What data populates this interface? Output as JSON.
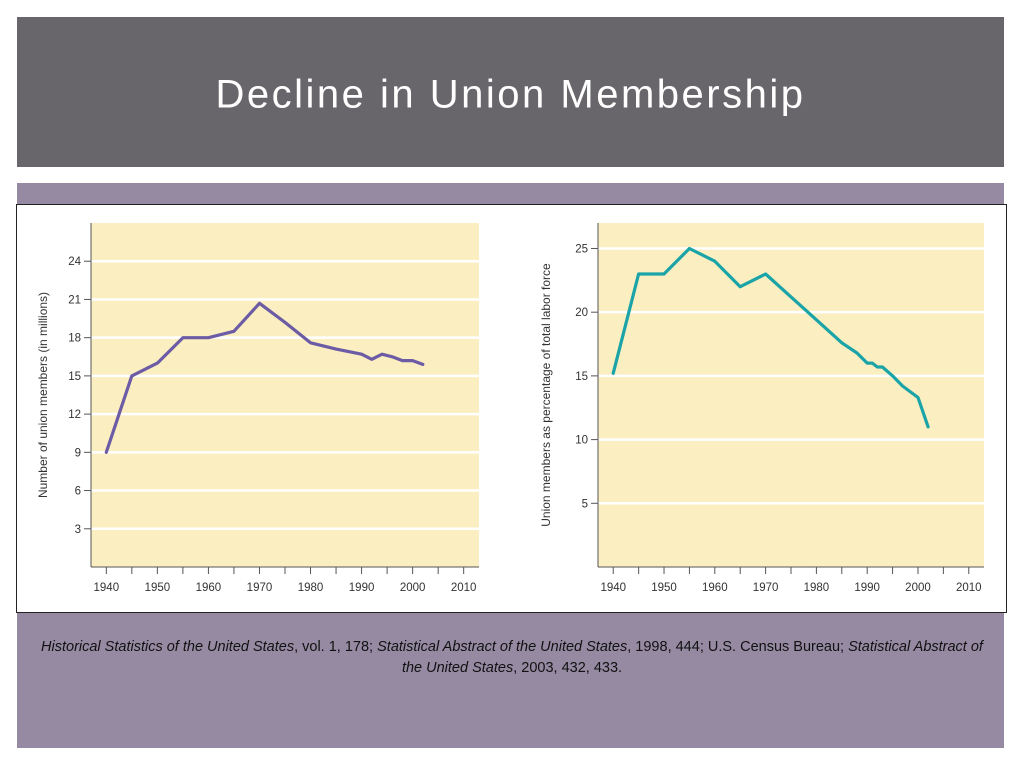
{
  "slide": {
    "title": "Decline in Union Membership"
  },
  "colors": {
    "title_bar": "#69666b",
    "panel": "#968aa3",
    "plot_bg": "#fbeec1",
    "gridline": "#ffffff",
    "series_left": "#6c5ba5",
    "series_right": "#1aa4a8"
  },
  "caption": {
    "ref1_title": "Historical Statistics of the United States",
    "ref1_rest": ", vol. 1, 178; ",
    "ref2_title": "Statistical Abstract of the United States",
    "ref2_rest": ", 1998, 444; U.S. Census Bureau; ",
    "ref3_title": "Statistical Abstract of the United States",
    "ref3_rest": ", 2003, 432, 433."
  },
  "chart_data": [
    {
      "type": "line",
      "title": "",
      "xlabel": "",
      "ylabel": "Number of union members (in millions)",
      "xlim": [
        1937,
        2013
      ],
      "ylim": [
        0,
        27
      ],
      "x_ticks": [
        "1940",
        "1950",
        "1960",
        "1970",
        "1980",
        "1990",
        "2000",
        "2010"
      ],
      "y_ticks": [
        "3",
        "6",
        "9",
        "12",
        "15",
        "18",
        "21",
        "24"
      ],
      "grid": true,
      "series": [
        {
          "x": [
            1940,
            1945,
            1950,
            1955,
            1960,
            1965,
            1970,
            1975,
            1980,
            1985,
            1990,
            1992,
            1994,
            1996,
            1998,
            2000,
            2002
          ],
          "values": [
            9.0,
            15.0,
            16.0,
            18.0,
            18.0,
            18.5,
            20.7,
            19.2,
            17.6,
            17.1,
            16.7,
            16.3,
            16.7,
            16.5,
            16.2,
            16.2,
            15.9
          ]
        }
      ]
    },
    {
      "type": "line",
      "title": "",
      "xlabel": "",
      "ylabel": "Union members as percentage of total labor force",
      "xlim": [
        1937,
        2013
      ],
      "ylim": [
        0,
        27
      ],
      "x_ticks": [
        "1940",
        "1950",
        "1960",
        "1970",
        "1980",
        "1990",
        "2000",
        "2010"
      ],
      "y_ticks": [
        "5",
        "10",
        "15",
        "20",
        "25"
      ],
      "grid": true,
      "series": [
        {
          "x": [
            1940,
            1945,
            1950,
            1955,
            1960,
            1965,
            1970,
            1975,
            1980,
            1985,
            1988,
            1990,
            1991,
            1992,
            1993,
            1995,
            1997,
            2000,
            2002
          ],
          "values": [
            15.2,
            23.0,
            23.0,
            25.0,
            24.0,
            22.0,
            23.0,
            21.2,
            19.4,
            17.6,
            16.8,
            16.0,
            16.0,
            15.7,
            15.7,
            15.0,
            14.2,
            13.3,
            11.0
          ]
        }
      ]
    }
  ]
}
